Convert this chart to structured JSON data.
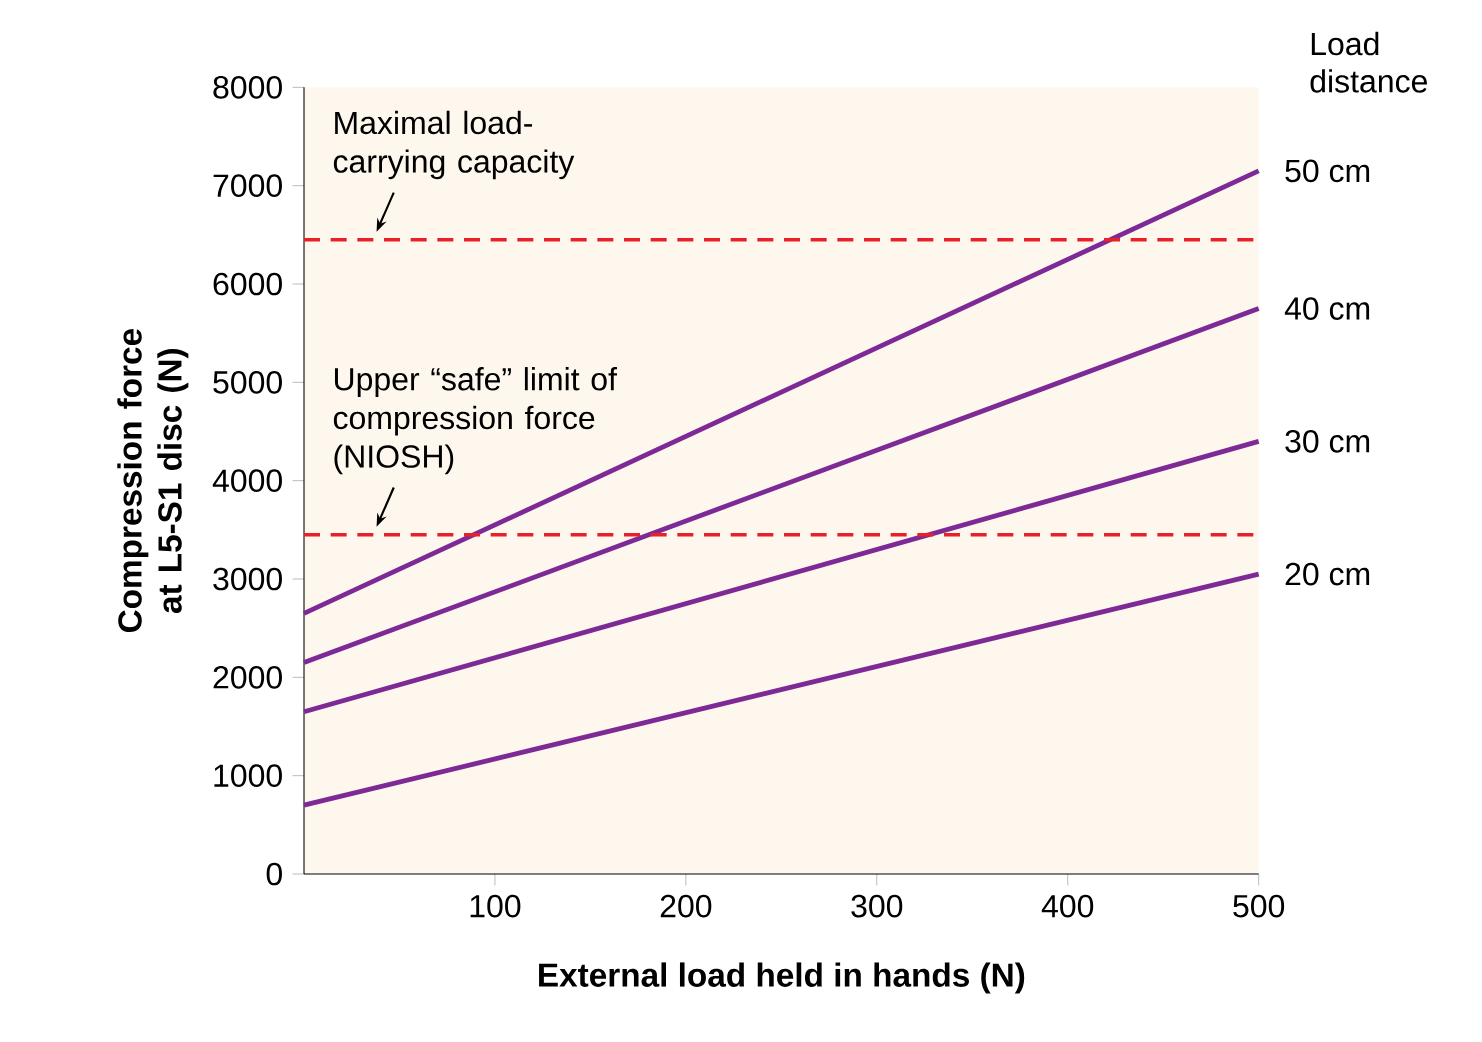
{
  "chart_data": {
    "type": "line",
    "xlabel": "External load held in hands (N)",
    "ylabel": "Compression force at L5-S1 disc (N)",
    "legend_title": "Load distance",
    "x": [
      0,
      500
    ],
    "series": [
      {
        "name": "50 cm",
        "color": "#7d2a97",
        "values": [
          2650,
          7150
        ]
      },
      {
        "name": "40 cm",
        "color": "#7d2a97",
        "values": [
          2150,
          5750
        ]
      },
      {
        "name": "30 cm",
        "color": "#7d2a97",
        "values": [
          1650,
          4400
        ]
      },
      {
        "name": "20 cm",
        "color": "#7d2a97",
        "values": [
          700,
          3050
        ]
      }
    ],
    "xlim": [
      0,
      500
    ],
    "xticks": [
      100,
      200,
      300,
      400,
      500
    ],
    "ylim": [
      0,
      8000
    ],
    "yticks": [
      0,
      1000,
      2000,
      3000,
      4000,
      5000,
      6000,
      7000,
      8000
    ],
    "ref_lines": [
      {
        "axis": "y",
        "value": 6450,
        "label": "Maximal load-carrying capacity",
        "color": "#e8202a",
        "line_style": "dashed"
      },
      {
        "axis": "y",
        "value": 3450,
        "label": "Upper “safe” limit of compression force (NIOSH)",
        "color": "#e8202a",
        "line_style": "dashed"
      }
    ],
    "marker": "none",
    "line_style": "solid",
    "grid": false
  }
}
